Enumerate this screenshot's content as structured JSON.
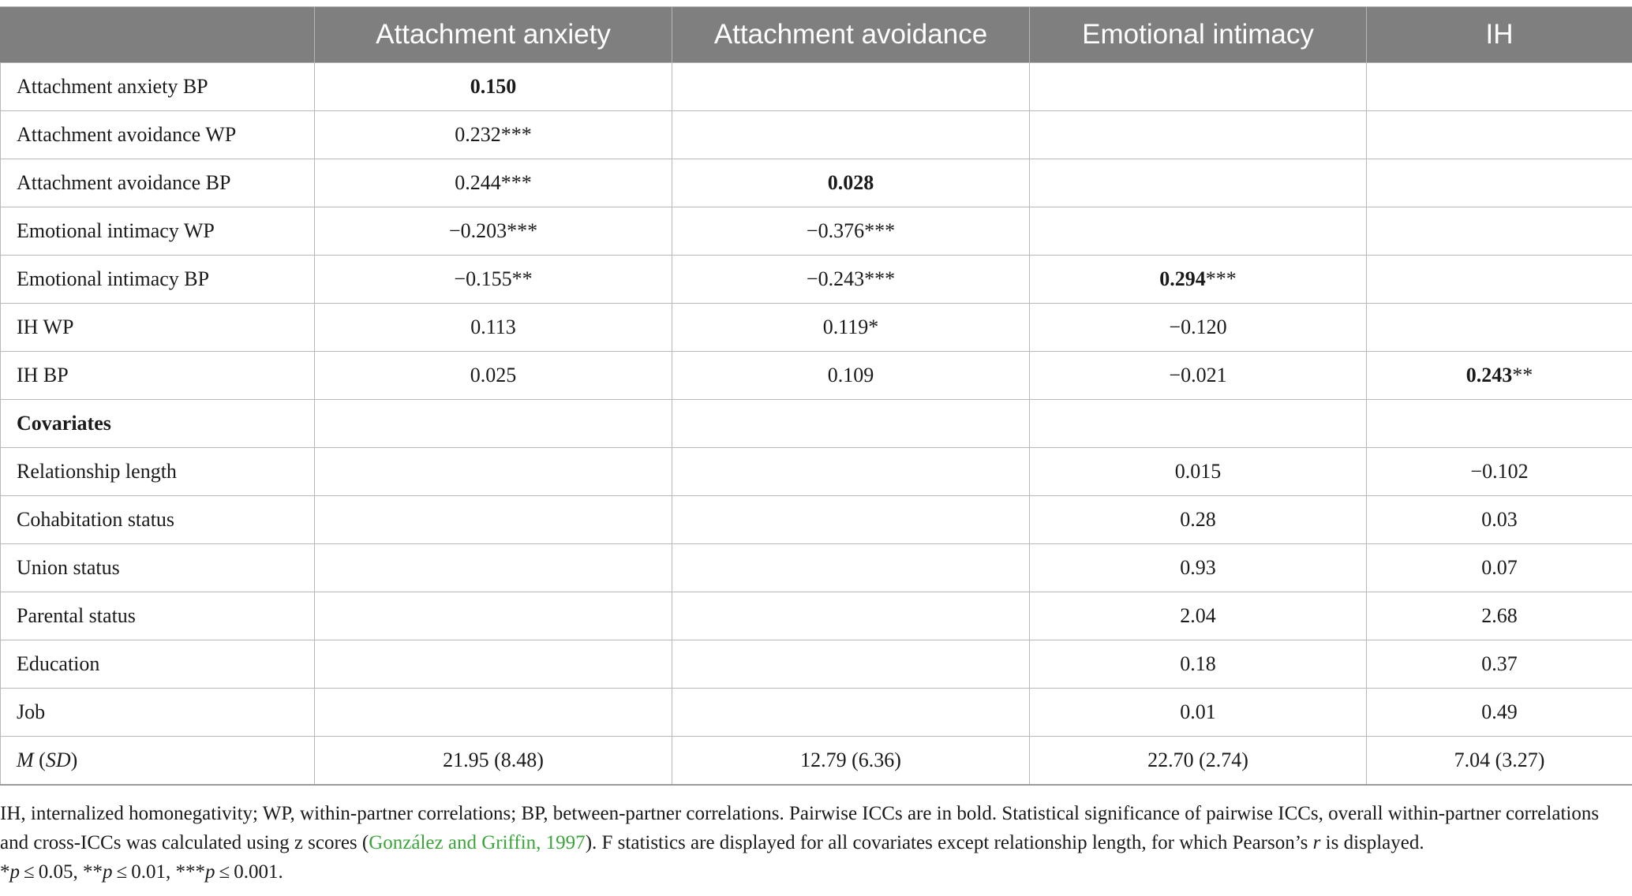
{
  "table": {
    "headers": [
      "",
      "Attachment anxiety",
      "Attachment avoidance",
      "Emotional intimacy",
      "IH"
    ],
    "rows": [
      {
        "label": "Attachment anxiety BP",
        "cells": [
          {
            "v": "0.150",
            "bold": true
          },
          {
            "v": ""
          },
          {
            "v": ""
          },
          {
            "v": ""
          }
        ]
      },
      {
        "label": "Attachment avoidance WP",
        "cells": [
          {
            "v": "0.232***"
          },
          {
            "v": ""
          },
          {
            "v": ""
          },
          {
            "v": ""
          }
        ]
      },
      {
        "label": "Attachment avoidance BP",
        "cells": [
          {
            "v": "0.244***"
          },
          {
            "v": "0.028",
            "bold": true
          },
          {
            "v": ""
          },
          {
            "v": ""
          }
        ]
      },
      {
        "label": "Emotional intimacy WP",
        "cells": [
          {
            "v": "−0.203***"
          },
          {
            "v": "−0.376***"
          },
          {
            "v": ""
          },
          {
            "v": ""
          }
        ]
      },
      {
        "label": "Emotional intimacy BP",
        "cells": [
          {
            "v": "−0.155**"
          },
          {
            "v": "−0.243***"
          },
          {
            "v": "0.294",
            "bold": true,
            "suffix": "***"
          },
          {
            "v": ""
          }
        ]
      },
      {
        "label": "IH WP",
        "cells": [
          {
            "v": "0.113"
          },
          {
            "v": "0.119*"
          },
          {
            "v": "−0.120"
          },
          {
            "v": ""
          }
        ]
      },
      {
        "label": "IH BP",
        "cells": [
          {
            "v": "0.025"
          },
          {
            "v": "0.109"
          },
          {
            "v": "−0.021"
          },
          {
            "v": "0.243",
            "bold": true,
            "suffix": "**"
          }
        ]
      },
      {
        "label": "Covariates",
        "label_bold": true,
        "cells": [
          {
            "v": ""
          },
          {
            "v": ""
          },
          {
            "v": ""
          },
          {
            "v": ""
          }
        ]
      },
      {
        "label": "Relationship length",
        "cells": [
          {
            "v": ""
          },
          {
            "v": ""
          },
          {
            "v": "0.015"
          },
          {
            "v": "−0.102"
          }
        ]
      },
      {
        "label": "Cohabitation status",
        "cells": [
          {
            "v": ""
          },
          {
            "v": ""
          },
          {
            "v": "0.28"
          },
          {
            "v": "0.03"
          }
        ]
      },
      {
        "label": "Union status",
        "cells": [
          {
            "v": ""
          },
          {
            "v": ""
          },
          {
            "v": "0.93"
          },
          {
            "v": "0.07"
          }
        ]
      },
      {
        "label": "Parental status",
        "cells": [
          {
            "v": ""
          },
          {
            "v": ""
          },
          {
            "v": "2.04"
          },
          {
            "v": "2.68"
          }
        ]
      },
      {
        "label": "Education",
        "cells": [
          {
            "v": ""
          },
          {
            "v": ""
          },
          {
            "v": "0.18"
          },
          {
            "v": "0.37"
          }
        ]
      },
      {
        "label": "Job",
        "cells": [
          {
            "v": ""
          },
          {
            "v": ""
          },
          {
            "v": "0.01"
          },
          {
            "v": "0.49"
          }
        ]
      }
    ],
    "summary_row": {
      "label_m": "M",
      "label_sd_open": " (",
      "label_sd": "SD",
      "label_sd_close": ")",
      "cells": [
        "21.95 (8.48)",
        "12.79 (6.36)",
        "22.70 (2.74)",
        "7.04 (3.27)"
      ]
    }
  },
  "note": {
    "part1": "IH, internalized homonegativity; WP, within-partner correlations; BP, between-partner correlations. Pairwise ICCs are in bold. Statistical significance of pairwise ICCs, overall within-partner correlations and cross-ICCs was calculated using z scores (",
    "citation": "González and Griffin, 1997",
    "part2": "). F statistics are displayed for all covariates except relationship length, for which Pearson’s ",
    "r": "r",
    "part3": " is displayed.",
    "sig_1_star": "*",
    "sig_1_p": "p",
    "sig_1_rest": " ≤ 0.05, ",
    "sig_2_star": "**",
    "sig_2_p": "p",
    "sig_2_rest": " ≤ 0.01, ",
    "sig_3_star": "***",
    "sig_3_p": "p",
    "sig_3_rest": " ≤ 0.001."
  }
}
